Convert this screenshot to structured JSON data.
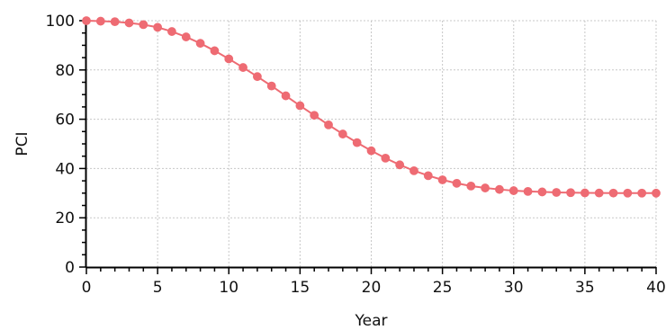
{
  "chart_data": {
    "type": "line",
    "title": "",
    "xlabel": "Year",
    "ylabel": "PCI",
    "xlim": [
      0,
      40
    ],
    "ylim": [
      0,
      100
    ],
    "x_ticks": [
      0,
      5,
      10,
      15,
      20,
      25,
      30,
      35,
      40
    ],
    "y_ticks": [
      0,
      20,
      40,
      60,
      80,
      100
    ],
    "x_tick_labels": [
      "0",
      "5",
      "10",
      "15",
      "20",
      "25",
      "30",
      "35",
      "40"
    ],
    "y_tick_labels": [
      "0",
      "20",
      "40",
      "60",
      "80",
      "100"
    ],
    "grid": true,
    "legend": "none",
    "colors": {
      "series": "#ee6b73",
      "grid": "#c8c8c8",
      "axis": "#000000"
    },
    "series": [
      {
        "x": [
          0,
          1,
          2,
          3,
          4,
          5,
          6,
          7,
          8,
          9,
          10,
          11,
          12,
          13,
          14,
          15,
          16,
          17,
          18,
          19,
          20,
          21,
          22,
          23,
          24,
          25,
          26,
          27,
          28,
          29,
          30,
          31,
          32,
          33,
          34,
          35,
          36,
          37,
          38,
          39,
          40
        ],
        "values": [
          100,
          99.8,
          99.6,
          99.1,
          98.4,
          97.3,
          95.6,
          93.4,
          90.8,
          87.8,
          84.5,
          81.0,
          77.3,
          73.5,
          69.5,
          65.5,
          61.6,
          57.7,
          54.0,
          50.5,
          47.2,
          44.2,
          41.5,
          39.1,
          37.1,
          35.4,
          34.0,
          32.9,
          32.1,
          31.5,
          31.0,
          30.7,
          30.5,
          30.3,
          30.2,
          30.1,
          30.05,
          30.03,
          30.02,
          30.01,
          30.0
        ]
      }
    ]
  }
}
